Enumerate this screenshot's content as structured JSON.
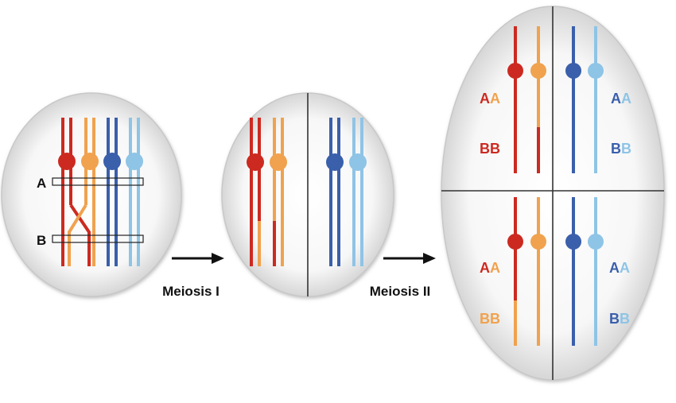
{
  "colors": {
    "red": "#cc2a20",
    "orange": "#f0a24e",
    "blue": "#3a5fab",
    "lightblue": "#8ec4e6",
    "divider": "#333333",
    "arrow": "#111111"
  },
  "cell1": {
    "locus_a": "A",
    "locus_b": "B"
  },
  "arrows": {
    "meiosis1": "Meiosis I",
    "meiosis2": "Meiosis II"
  },
  "cell3": {
    "top_left": {
      "upper": [
        "A",
        "A"
      ],
      "lower": [
        "B",
        "B"
      ]
    },
    "top_right": {
      "upper": [
        "A",
        "A"
      ],
      "lower": [
        "B",
        "B"
      ]
    },
    "bottom_left": {
      "upper": [
        "A",
        "A"
      ],
      "lower": [
        "B",
        "B"
      ]
    },
    "bottom_right": {
      "upper": [
        "A",
        "A"
      ],
      "lower": [
        "B",
        "B"
      ]
    }
  }
}
